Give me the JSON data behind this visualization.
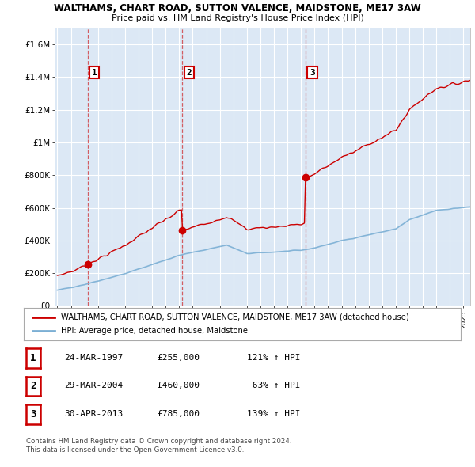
{
  "title": "WALTHAMS, CHART ROAD, SUTTON VALENCE, MAIDSTONE, ME17 3AW",
  "subtitle": "Price paid vs. HM Land Registry's House Price Index (HPI)",
  "ylim": [
    0,
    1700000
  ],
  "yticks": [
    0,
    200000,
    400000,
    600000,
    800000,
    1000000,
    1200000,
    1400000,
    1600000
  ],
  "ytick_labels": [
    "£0",
    "£200K",
    "£400K",
    "£600K",
    "£800K",
    "£1M",
    "£1.2M",
    "£1.4M",
    "£1.6M"
  ],
  "xlim_start": 1994.8,
  "xlim_end": 2025.5,
  "sale_dates": [
    1997.23,
    2004.24,
    2013.33
  ],
  "sale_prices": [
    255000,
    460000,
    785000
  ],
  "sale_labels": [
    "1",
    "2",
    "3"
  ],
  "legend_red": "WALTHAMS, CHART ROAD, SUTTON VALENCE, MAIDSTONE, ME17 3AW (detached house)",
  "legend_blue": "HPI: Average price, detached house, Maidstone",
  "table_rows": [
    {
      "num": "1",
      "date": "24-MAR-1997",
      "price": "£255,000",
      "hpi": "121% ↑ HPI"
    },
    {
      "num": "2",
      "date": "29-MAR-2004",
      "price": "£460,000",
      "hpi": " 63% ↑ HPI"
    },
    {
      "num": "3",
      "date": "30-APR-2013",
      "price": "£785,000",
      "hpi": "139% ↑ HPI"
    }
  ],
  "footer1": "Contains HM Land Registry data © Crown copyright and database right 2024.",
  "footer2": "This data is licensed under the Open Government Licence v3.0.",
  "red_color": "#cc0000",
  "blue_color": "#7bafd4",
  "bg_color": "#dce8f5",
  "grid_color": "#ffffff"
}
